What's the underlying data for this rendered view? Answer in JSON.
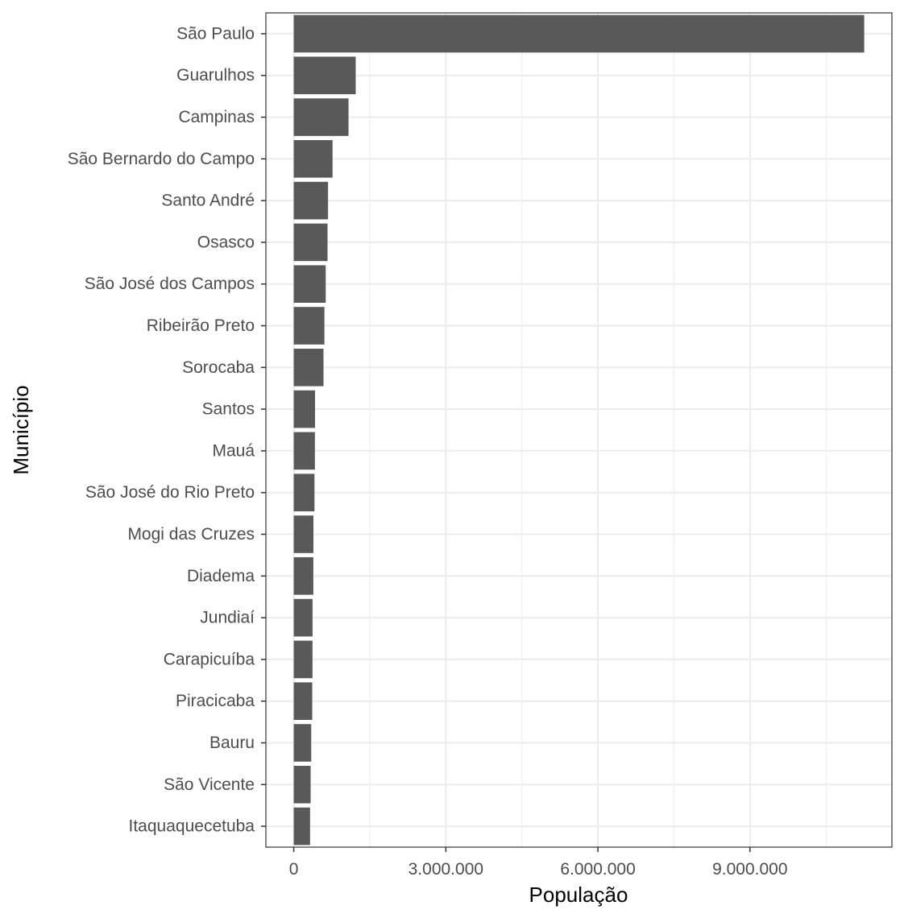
{
  "chart_data": {
    "type": "bar",
    "orientation": "horizontal",
    "title": "",
    "xlabel": "População",
    "ylabel": "Município",
    "categories": [
      "São Paulo",
      "Guarulhos",
      "Campinas",
      "São Bernardo do Campo",
      "Santo André",
      "Osasco",
      "São José dos Campos",
      "Ribeirão Preto",
      "Sorocaba",
      "Santos",
      "Mauá",
      "São José do Rio Preto",
      "Mogi das Cruzes",
      "Diadema",
      "Jundiaí",
      "Carapicuíba",
      "Piracicaba",
      "Bauru",
      "São Vicente",
      "Itaquaquecetuba"
    ],
    "values": [
      11253503,
      1221979,
      1080113,
      765463,
      676407,
      666740,
      629921,
      604682,
      586625,
      419400,
      417064,
      408258,
      387779,
      386089,
      370126,
      369584,
      364571,
      343937,
      332445,
      321770
    ],
    "xlim": [
      -550000,
      11800000
    ],
    "xticks": [
      0,
      3000000,
      6000000,
      9000000
    ],
    "xtick_labels": [
      "0",
      "3.000.000",
      "6.000.000",
      "9.000.000"
    ],
    "grid": true,
    "colors": {
      "bar": "#595959",
      "grid": "#ebebeb",
      "panel_border": "#333333",
      "tick_label": "#4d4d4d",
      "axis_title": "#000000"
    }
  }
}
